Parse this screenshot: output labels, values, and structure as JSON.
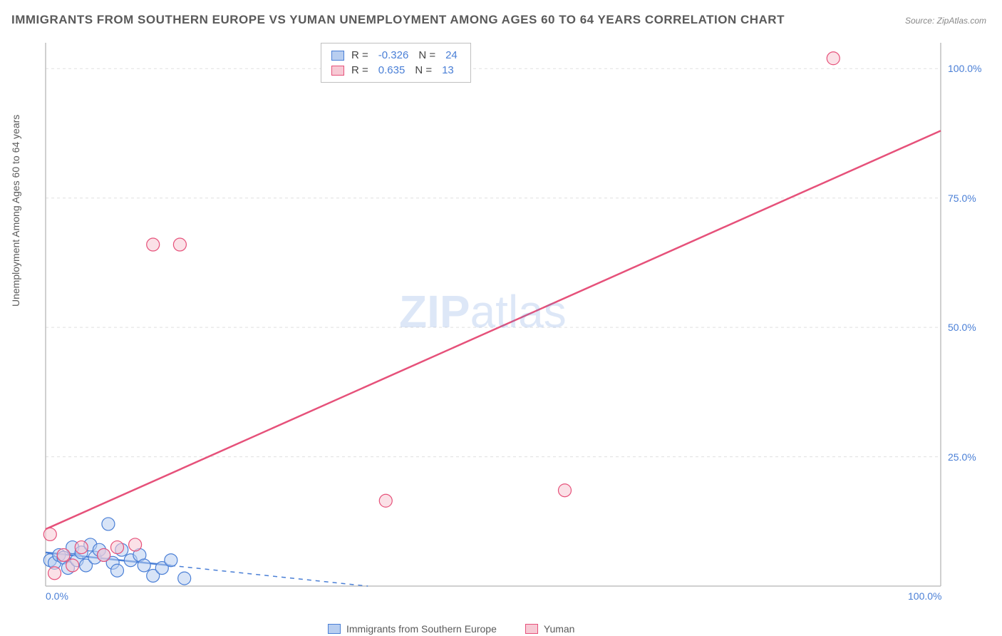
{
  "title": "IMMIGRANTS FROM SOUTHERN EUROPE VS YUMAN UNEMPLOYMENT AMONG AGES 60 TO 64 YEARS CORRELATION CHART",
  "source": "Source: ZipAtlas.com",
  "y_axis_label": "Unemployment Among Ages 60 to 64 years",
  "watermark_bold": "ZIP",
  "watermark_light": "atlas",
  "chart": {
    "type": "scatter",
    "xlim": [
      0,
      100
    ],
    "ylim": [
      0,
      105
    ],
    "x_ticks": [
      0,
      100
    ],
    "x_tick_labels": [
      "0.0%",
      "100.0%"
    ],
    "y_ticks": [
      25,
      50,
      75,
      100
    ],
    "y_tick_labels": [
      "25.0%",
      "50.0%",
      "75.0%",
      "100.0%"
    ],
    "background_color": "#ffffff",
    "grid_color": "#e0e0e0",
    "axis_color": "#c0c0c0",
    "tick_label_color": "#4a7fd6",
    "series": [
      {
        "name": "Immigrants from Southern Europe",
        "color_fill": "#b8cef0",
        "color_stroke": "#4a7fd6",
        "marker_radius": 9,
        "fill_opacity": 0.55,
        "r_value": "-0.326",
        "n_value": "24",
        "trend": {
          "x1": 0,
          "y1": 6.5,
          "x2": 36,
          "y2": 0,
          "solid_until_x": 14,
          "color": "#4a7fd6",
          "width": 2.5
        },
        "points": [
          {
            "x": 0.5,
            "y": 5.0
          },
          {
            "x": 1.0,
            "y": 4.5
          },
          {
            "x": 1.5,
            "y": 6.0
          },
          {
            "x": 2.0,
            "y": 5.5
          },
          {
            "x": 2.5,
            "y": 3.5
          },
          {
            "x": 3.0,
            "y": 7.5
          },
          {
            "x": 3.5,
            "y": 5.0
          },
          {
            "x": 4.0,
            "y": 6.5
          },
          {
            "x": 4.5,
            "y": 4.0
          },
          {
            "x": 5.0,
            "y": 8.0
          },
          {
            "x": 5.5,
            "y": 5.5
          },
          {
            "x": 6.0,
            "y": 7.0
          },
          {
            "x": 6.5,
            "y": 6.0
          },
          {
            "x": 7.0,
            "y": 12.0
          },
          {
            "x": 7.5,
            "y": 4.5
          },
          {
            "x": 8.0,
            "y": 3.0
          },
          {
            "x": 8.5,
            "y": 7.0
          },
          {
            "x": 9.5,
            "y": 5.0
          },
          {
            "x": 10.5,
            "y": 6.0
          },
          {
            "x": 11.0,
            "y": 4.0
          },
          {
            "x": 12.0,
            "y": 2.0
          },
          {
            "x": 13.0,
            "y": 3.5
          },
          {
            "x": 14.0,
            "y": 5.0
          },
          {
            "x": 15.5,
            "y": 1.5
          }
        ]
      },
      {
        "name": "Yuman",
        "color_fill": "#f7c9d4",
        "color_stroke": "#e6517a",
        "marker_radius": 9,
        "fill_opacity": 0.55,
        "r_value": "0.635",
        "n_value": "13",
        "trend": {
          "x1": 0,
          "y1": 11,
          "x2": 100,
          "y2": 88,
          "solid_until_x": 100,
          "color": "#e6517a",
          "width": 2.5
        },
        "points": [
          {
            "x": 0.5,
            "y": 10.0
          },
          {
            "x": 1.0,
            "y": 2.5
          },
          {
            "x": 2.0,
            "y": 6.0
          },
          {
            "x": 3.0,
            "y": 4.0
          },
          {
            "x": 4.0,
            "y": 7.5
          },
          {
            "x": 6.5,
            "y": 6.0
          },
          {
            "x": 8.0,
            "y": 7.5
          },
          {
            "x": 10.0,
            "y": 8.0
          },
          {
            "x": 12.0,
            "y": 66.0
          },
          {
            "x": 15.0,
            "y": 66.0
          },
          {
            "x": 38.0,
            "y": 16.5
          },
          {
            "x": 58.0,
            "y": 18.5
          },
          {
            "x": 88.0,
            "y": 102.0
          }
        ]
      }
    ]
  },
  "stats_labels": {
    "r": "R =",
    "n": "N ="
  },
  "legend": [
    {
      "label": "Immigrants from Southern Europe",
      "fill": "#b8cef0",
      "stroke": "#4a7fd6"
    },
    {
      "label": "Yuman",
      "fill": "#f7c9d4",
      "stroke": "#e6517a"
    }
  ]
}
